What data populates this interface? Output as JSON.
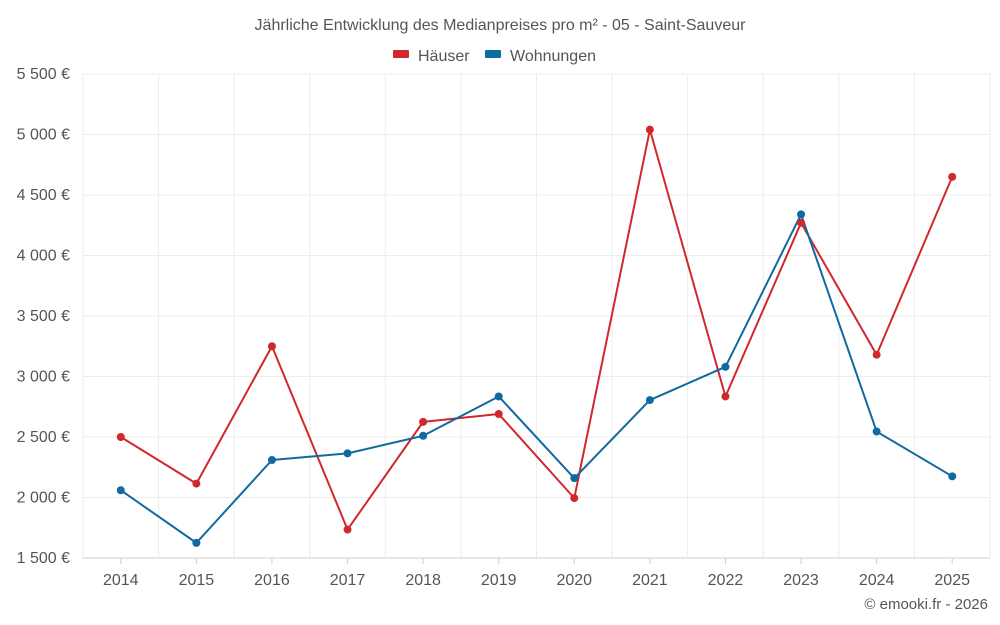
{
  "chart_data": {
    "type": "line",
    "title": "Jährliche Entwicklung des Medianpreises pro m² - 05 - Saint-Sauveur",
    "categories": [
      "2014",
      "2015",
      "2016",
      "2017",
      "2018",
      "2019",
      "2020",
      "2021",
      "2022",
      "2023",
      "2024",
      "2025"
    ],
    "series": [
      {
        "name": "Häuser",
        "color": "#d0282d",
        "values": [
          2500,
          2115,
          3250,
          1735,
          2625,
          2690,
          1995,
          5040,
          2835,
          4270,
          3180,
          4650
        ]
      },
      {
        "name": "Wohnungen",
        "color": "#0e6aa0",
        "values": [
          2060,
          1625,
          2310,
          2365,
          2510,
          2835,
          2160,
          2805,
          3080,
          4340,
          2545,
          2175
        ]
      }
    ],
    "ylim": [
      1500,
      5500
    ],
    "yticks": [
      1500,
      2000,
      2500,
      3000,
      3500,
      4000,
      4500,
      5000,
      5500
    ],
    "ytick_labels": [
      "1 500 €",
      "2 000 €",
      "2 500 €",
      "3 000 €",
      "3 500 €",
      "4 000 €",
      "4 500 €",
      "5 000 €",
      "5 500 €"
    ],
    "xlabel": "",
    "ylabel": "",
    "grid": true,
    "legend_position": "top-center"
  },
  "credit": "© emooki.fr - 2026"
}
